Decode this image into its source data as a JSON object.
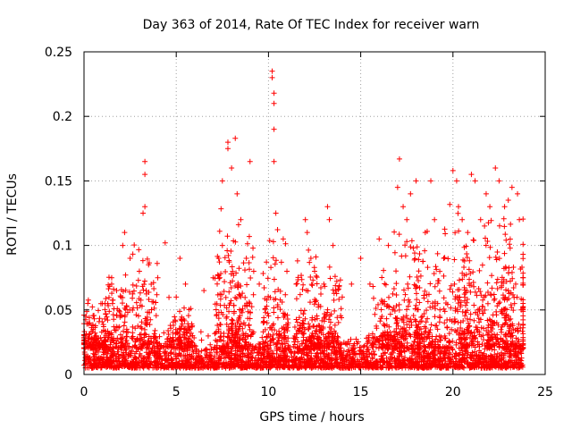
{
  "chart_data": {
    "type": "scatter",
    "title": "Day 363 of 2014, Rate Of TEC Index for receiver warn",
    "xlabel": "GPS time / hours",
    "ylabel": "ROTI / TECUs",
    "xlim": [
      0,
      25
    ],
    "ylim": [
      0,
      0.25
    ],
    "xticks": [
      0,
      5,
      10,
      15,
      20,
      25
    ],
    "yticks": [
      0,
      0.05,
      0.1,
      0.15,
      0.2,
      0.25
    ],
    "xtick_labels": [
      "0",
      "5",
      "10",
      "15",
      "20",
      "25"
    ],
    "ytick_labels": [
      "0",
      "0.05",
      "0.1",
      "0.15",
      "0.2",
      "0.25"
    ],
    "grid": true,
    "marker": "+",
    "color": "#ff0000",
    "series": [
      {
        "name": "ROTI",
        "note": "dense point cloud; background noise 0.005-0.03 TECUs across 0-23.8 h; listed points are representative peaks",
        "points": [
          [
            0.1,
            0.045
          ],
          [
            0.3,
            0.04
          ],
          [
            0.5,
            0.035
          ],
          [
            1.0,
            0.055
          ],
          [
            1.5,
            0.07
          ],
          [
            1.5,
            0.075
          ],
          [
            2.0,
            0.06
          ],
          [
            2.1,
            0.1
          ],
          [
            2.2,
            0.11
          ],
          [
            2.5,
            0.09
          ],
          [
            3.0,
            0.08
          ],
          [
            3.2,
            0.125
          ],
          [
            3.3,
            0.13
          ],
          [
            3.3,
            0.155
          ],
          [
            3.3,
            0.165
          ],
          [
            3.5,
            0.085
          ],
          [
            4.0,
            0.075
          ],
          [
            4.4,
            0.102
          ],
          [
            5.0,
            0.06
          ],
          [
            5.2,
            0.09
          ],
          [
            5.5,
            0.07
          ],
          [
            6.5,
            0.065
          ],
          [
            7.0,
            0.075
          ],
          [
            7.3,
            0.09
          ],
          [
            7.5,
            0.1
          ],
          [
            7.8,
            0.175
          ],
          [
            7.8,
            0.18
          ],
          [
            7.5,
            0.15
          ],
          [
            8.0,
            0.16
          ],
          [
            8.2,
            0.183
          ],
          [
            8.3,
            0.14
          ],
          [
            8.5,
            0.12
          ],
          [
            8.8,
            0.09
          ],
          [
            9.0,
            0.165
          ],
          [
            9.2,
            0.08
          ],
          [
            9.5,
            0.07
          ],
          [
            10.2,
            0.235
          ],
          [
            10.2,
            0.23
          ],
          [
            10.3,
            0.218
          ],
          [
            10.3,
            0.21
          ],
          [
            10.3,
            0.19
          ],
          [
            10.3,
            0.165
          ],
          [
            10.4,
            0.125
          ],
          [
            10.8,
            0.105
          ],
          [
            11.0,
            0.08
          ],
          [
            11.5,
            0.07
          ],
          [
            12.0,
            0.12
          ],
          [
            12.1,
            0.11
          ],
          [
            12.3,
            0.09
          ],
          [
            12.5,
            0.08
          ],
          [
            13.0,
            0.07
          ],
          [
            13.2,
            0.13
          ],
          [
            13.3,
            0.12
          ],
          [
            13.5,
            0.1
          ],
          [
            14.0,
            0.06
          ],
          [
            14.5,
            0.07
          ],
          [
            15.0,
            0.09
          ],
          [
            15.5,
            0.07
          ],
          [
            16.0,
            0.105
          ],
          [
            16.5,
            0.1
          ],
          [
            17.0,
            0.145
          ],
          [
            17.1,
            0.167
          ],
          [
            17.3,
            0.13
          ],
          [
            17.5,
            0.12
          ],
          [
            17.7,
            0.14
          ],
          [
            18.0,
            0.15
          ],
          [
            18.5,
            0.11
          ],
          [
            18.8,
            0.15
          ],
          [
            19.0,
            0.12
          ],
          [
            19.5,
            0.09
          ],
          [
            20.0,
            0.158
          ],
          [
            20.2,
            0.15
          ],
          [
            20.3,
            0.13
          ],
          [
            20.5,
            0.12
          ],
          [
            20.8,
            0.11
          ],
          [
            21.0,
            0.155
          ],
          [
            21.2,
            0.15
          ],
          [
            21.5,
            0.12
          ],
          [
            21.8,
            0.14
          ],
          [
            22.0,
            0.13
          ],
          [
            22.3,
            0.16
          ],
          [
            22.5,
            0.15
          ],
          [
            22.8,
            0.13
          ],
          [
            23.0,
            0.135
          ],
          [
            23.2,
            0.145
          ],
          [
            23.5,
            0.14
          ],
          [
            23.6,
            0.12
          ],
          [
            23.7,
            0.05
          ],
          [
            23.8,
            0.02
          ]
        ]
      }
    ]
  }
}
